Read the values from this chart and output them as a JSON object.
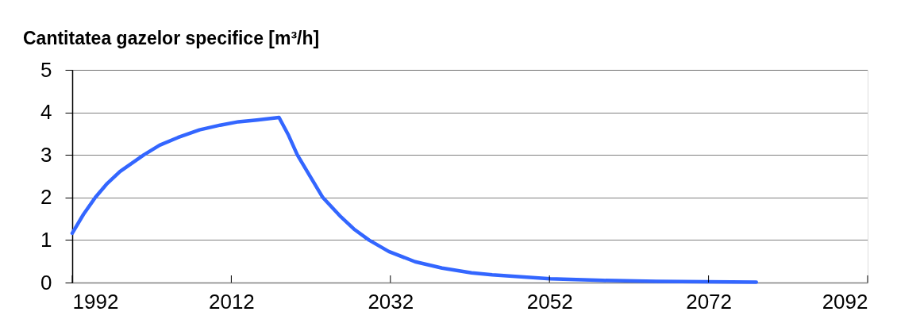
{
  "chart_data": {
    "type": "line",
    "title": "Cantitatea gazelor specifice [m³/h]",
    "series": [
      {
        "color": "#3366ff",
        "x": [
          1992,
          1993.4,
          1994.9,
          1996.3,
          1998,
          2001,
          2003,
          2005.3,
          2008,
          2010.6,
          2012.9,
          2015.2,
          2018,
          2019.2,
          2020.3,
          2021.8,
          2023.5,
          2025.8,
          2027.4,
          2029.3,
          2031.8,
          2035.1,
          2038.5,
          2042.2,
          2044.8,
          2048.8,
          2052.1,
          2058.7,
          2065.4,
          2078
        ],
        "values": [
          1.16,
          1.6,
          2.0,
          2.31,
          2.61,
          3.0,
          3.23,
          3.41,
          3.59,
          3.7,
          3.78,
          3.82,
          3.88,
          3.46,
          3.0,
          2.53,
          2.0,
          1.54,
          1.26,
          1.0,
          0.73,
          0.49,
          0.34,
          0.23,
          0.18,
          0.13,
          0.09,
          0.05,
          0.03,
          0.01
        ]
      }
    ],
    "xlim": [
      1992,
      2092
    ],
    "xticks": [
      1992,
      2012,
      2032,
      2052,
      2072,
      2092
    ],
    "ylim": [
      0,
      5
    ],
    "yticks": [
      0,
      1,
      2,
      3,
      4,
      5
    ],
    "grid": "y"
  }
}
